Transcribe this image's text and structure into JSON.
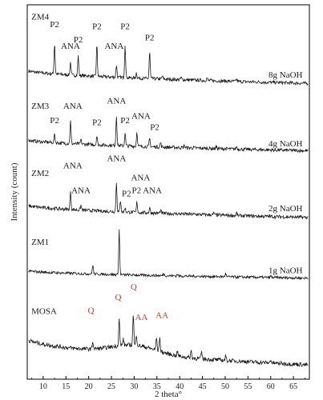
{
  "chart_data": {
    "type": "line",
    "title": "",
    "xlabel": "2 theta°",
    "ylabel": "Intensity (count)",
    "xlim": [
      6.5,
      68.5
    ],
    "xticks": [
      10,
      15,
      20,
      25,
      30,
      35,
      40,
      45,
      50,
      55,
      60,
      65
    ],
    "ylim": [
      0,
      100
    ],
    "grid": false,
    "legend": "none",
    "series": [
      {
        "name": "ZM4",
        "condition": "8g NaOH",
        "color": "#1a1a1a",
        "baseline": 82.5,
        "baseline_end": 79.0,
        "noise": 0.45,
        "peaks": [
          [
            12.5,
            8.2
          ],
          [
            16.0,
            3.4
          ],
          [
            17.7,
            5.2
          ],
          [
            21.8,
            8.3
          ],
          [
            26.1,
            3.3
          ],
          [
            28.0,
            8.9
          ],
          [
            30.5,
            1.5
          ],
          [
            33.4,
            7.1
          ],
          [
            36.2,
            0.8
          ],
          [
            40.3,
            0.6
          ],
          [
            46.0,
            0.7
          ],
          [
            52.5,
            0.6
          ]
        ]
      },
      {
        "name": "ZM3",
        "condition": "4g NaOH",
        "color": "#1a1a1a",
        "baseline": 64.0,
        "baseline_end": 61.0,
        "noise": 0.45,
        "peaks": [
          [
            12.5,
            2.2
          ],
          [
            16.0,
            6.0
          ],
          [
            18.3,
            1.2
          ],
          [
            21.8,
            2.4
          ],
          [
            26.1,
            8.0
          ],
          [
            28.0,
            3.5
          ],
          [
            30.6,
            3.8
          ],
          [
            33.4,
            2.2
          ],
          [
            35.8,
            1.2
          ],
          [
            41.0,
            0.6
          ],
          [
            48.0,
            0.6
          ],
          [
            52.5,
            0.7
          ]
        ]
      },
      {
        "name": "ZM2",
        "condition": "2g NaOH",
        "color": "#1a1a1a",
        "baseline": 46.5,
        "baseline_end": 43.2,
        "noise": 0.45,
        "peaks": [
          [
            16.0,
            4.5
          ],
          [
            18.3,
            1.3
          ],
          [
            26.1,
            7.8
          ],
          [
            27.0,
            3.0
          ],
          [
            28.0,
            1.1
          ],
          [
            30.6,
            2.8
          ],
          [
            33.4,
            1.5
          ],
          [
            35.8,
            0.8
          ],
          [
            47.5,
            0.6
          ],
          [
            52.5,
            0.7
          ]
        ]
      },
      {
        "name": "ZM1",
        "condition": "1g NaOH",
        "color": "#1a1a1a",
        "baseline": 29.0,
        "baseline_end": 27.0,
        "noise": 0.35,
        "peaks": [
          [
            20.9,
            2.5
          ],
          [
            26.7,
            12.0
          ],
          [
            36.5,
            0.6
          ],
          [
            39.5,
            0.5
          ],
          [
            50.1,
            0.9
          ],
          [
            60.0,
            0.4
          ]
        ]
      },
      {
        "name": "MOSA",
        "condition": "",
        "color": "#1a1a1a",
        "baseline": 10.8,
        "baseline_end": 3.8,
        "noise": 0.55,
        "hump": [
          30.0,
          7.0,
          2.4
        ],
        "peaks": [
          [
            20.9,
            2.0
          ],
          [
            26.7,
            7.4
          ],
          [
            27.6,
            1.6
          ],
          [
            29.8,
            8.4
          ],
          [
            30.5,
            3.0
          ],
          [
            34.9,
            3.5
          ],
          [
            35.6,
            3.8
          ],
          [
            39.5,
            1.2
          ],
          [
            42.5,
            2.0
          ],
          [
            44.8,
            1.8
          ],
          [
            50.1,
            1.1
          ],
          [
            60.0,
            0.9
          ]
        ]
      }
    ],
    "annotations": [
      {
        "text": "ZM4",
        "x": 7.4,
        "y": 96.0,
        "color": "#1a1a1a",
        "align": "start"
      },
      {
        "text": "P2",
        "x": 12.5,
        "y": 94.0,
        "color": "#1a1a1a",
        "align": "middle"
      },
      {
        "text": "ANA",
        "x": 16.0,
        "y": 88.2,
        "color": "#1a1a1a",
        "align": "middle"
      },
      {
        "text": "P2",
        "x": 17.7,
        "y": 90.0,
        "color": "#1a1a1a",
        "align": "middle"
      },
      {
        "text": "P2",
        "x": 21.8,
        "y": 93.5,
        "color": "#1a1a1a",
        "align": "middle"
      },
      {
        "text": "ANA",
        "x": 25.6,
        "y": 88.2,
        "color": "#1a1a1a",
        "align": "middle"
      },
      {
        "text": "P2",
        "x": 28.0,
        "y": 93.5,
        "color": "#1a1a1a",
        "align": "middle"
      },
      {
        "text": "P2",
        "x": 33.4,
        "y": 90.5,
        "color": "#1a1a1a",
        "align": "middle"
      },
      {
        "text": "8g NaOH",
        "x": 67.0,
        "y": 80.6,
        "color": "#1a1a1a",
        "align": "end"
      },
      {
        "text": "ZM3",
        "x": 7.4,
        "y": 72.2,
        "color": "#1a1a1a",
        "align": "start"
      },
      {
        "text": "ANA",
        "x": 16.5,
        "y": 72.2,
        "color": "#1a1a1a",
        "align": "middle"
      },
      {
        "text": "P2",
        "x": 12.5,
        "y": 68.4,
        "color": "#1a1a1a",
        "align": "middle"
      },
      {
        "text": "P2",
        "x": 21.8,
        "y": 67.8,
        "color": "#1a1a1a",
        "align": "middle"
      },
      {
        "text": "ANA",
        "x": 26.1,
        "y": 73.6,
        "color": "#1a1a1a",
        "align": "middle"
      },
      {
        "text": "P2",
        "x": 28.0,
        "y": 68.4,
        "color": "#1a1a1a",
        "align": "middle"
      },
      {
        "text": "ANA",
        "x": 31.5,
        "y": 69.6,
        "color": "#1a1a1a",
        "align": "middle"
      },
      {
        "text": "P2",
        "x": 34.5,
        "y": 66.6,
        "color": "#1a1a1a",
        "align": "middle"
      },
      {
        "text": "4g NaOH",
        "x": 67.0,
        "y": 62.2,
        "color": "#1a1a1a",
        "align": "end"
      },
      {
        "text": "ZM2",
        "x": 7.4,
        "y": 54.3,
        "color": "#1a1a1a",
        "align": "start"
      },
      {
        "text": "ANA",
        "x": 16.5,
        "y": 56.3,
        "color": "#1a1a1a",
        "align": "middle"
      },
      {
        "text": "ANA",
        "x": 18.3,
        "y": 49.7,
        "color": "#1a1a1a",
        "align": "middle"
      },
      {
        "text": "ANA",
        "x": 26.1,
        "y": 58.2,
        "color": "#1a1a1a",
        "align": "middle"
      },
      {
        "text": "P2",
        "x": 28.3,
        "y": 48.8,
        "color": "#1a1a1a",
        "align": "middle"
      },
      {
        "text": "ANA",
        "x": 31.4,
        "y": 53.1,
        "color": "#1a1a1a",
        "align": "middle"
      },
      {
        "text": "P2",
        "x": 30.5,
        "y": 49.7,
        "color": "#1a1a1a",
        "align": "middle"
      },
      {
        "text": "ANA",
        "x": 34.0,
        "y": 49.7,
        "color": "#1a1a1a",
        "align": "middle"
      },
      {
        "text": "2g NaOH",
        "x": 67.0,
        "y": 44.9,
        "color": "#1a1a1a",
        "align": "end"
      },
      {
        "text": "ZM1",
        "x": 7.4,
        "y": 35.9,
        "color": "#1a1a1a",
        "align": "start"
      },
      {
        "text": "1g NaOH",
        "x": 67.0,
        "y": 28.3,
        "color": "#1a1a1a",
        "align": "end"
      },
      {
        "text": "MOSA",
        "x": 7.4,
        "y": 17.4,
        "color": "#1a1a1a",
        "align": "start"
      },
      {
        "text": "Q",
        "x": 20.5,
        "y": 17.6,
        "color": "#c0392b",
        "align": "middle"
      },
      {
        "text": "Q",
        "x": 26.5,
        "y": 21.2,
        "color": "#c0392b",
        "align": "middle"
      },
      {
        "text": "Q",
        "x": 29.9,
        "y": 23.9,
        "color": "#c0392b",
        "align": "middle"
      },
      {
        "text": "AA",
        "x": 31.6,
        "y": 15.8,
        "color": "#c0392b",
        "align": "middle"
      },
      {
        "text": "AA",
        "x": 36.1,
        "y": 16.3,
        "color": "#c0392b",
        "align": "middle"
      }
    ]
  }
}
